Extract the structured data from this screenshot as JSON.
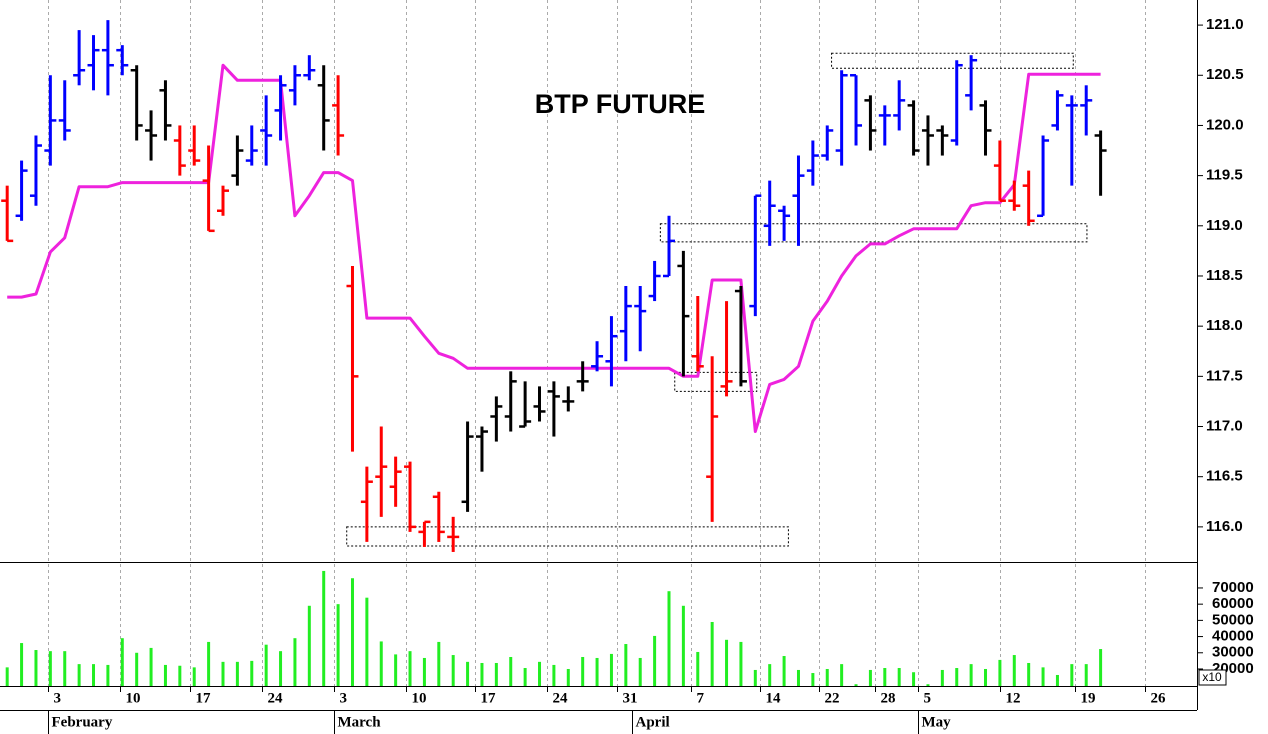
{
  "chart_data": [
    {
      "type": "ohlc",
      "title": "BTP FUTURE",
      "xlim": [
        -0.5,
        82.7
      ],
      "ylim": [
        115.65,
        121.25
      ],
      "yticks": [
        {
          "value": 116,
          "label": "116.0"
        },
        {
          "value": 116.5,
          "label": "116.5"
        },
        {
          "value": 117,
          "label": "117.0"
        },
        {
          "value": 117.5,
          "label": "117.5"
        },
        {
          "value": 118,
          "label": "118.0"
        },
        {
          "value": 118.5,
          "label": "118.5"
        },
        {
          "value": 119,
          "label": "119.0"
        },
        {
          "value": 119.5,
          "label": "119.5"
        },
        {
          "value": 120,
          "label": "120.0"
        },
        {
          "value": 120.5,
          "label": "120.5"
        },
        {
          "value": 121,
          "label": "121.0"
        }
      ],
      "grid": true,
      "open": [
        119.25,
        119.1,
        119.3,
        119.75,
        120.05,
        120.5,
        120.6,
        120.75,
        120.75,
        120.55,
        119.95,
        120.35,
        119.85,
        119.75,
        119.45,
        119.15,
        119.5,
        119.65,
        119.95,
        120.15,
        120.35,
        120.5,
        120.4,
        120.2,
        118.4,
        116.25,
        116.5,
        116.4,
        116.6,
        115.95,
        116.3,
        115.9,
        116.25,
        116.9,
        117.1,
        117.1,
        117.0,
        117.2,
        117.35,
        117.25,
        117.45,
        117.6,
        117.65,
        117.95,
        118.2,
        118.3,
        118.5,
        118.6,
        117.7,
        116.5,
        117.4,
        118.35,
        118.2,
        119.0,
        119.15,
        119.3,
        119.55,
        119.7,
        119.75,
        120.5,
        120.25,
        120.1,
        120.1,
        120.2,
        119.95,
        119.95,
        119.85,
        120.3,
        120.2,
        119.6,
        119.25,
        119.4,
        119.1,
        120.0,
        120.2,
        120.2,
        119.9
      ],
      "high": [
        119.4,
        119.65,
        119.9,
        120.5,
        120.45,
        120.95,
        120.9,
        121.05,
        120.8,
        120.6,
        120.15,
        120.45,
        120.0,
        120.0,
        119.8,
        119.4,
        119.9,
        120.0,
        120.3,
        120.5,
        120.6,
        120.7,
        120.6,
        120.5,
        118.6,
        116.6,
        117.0,
        116.7,
        116.65,
        116.05,
        116.35,
        116.1,
        117.05,
        117.0,
        117.3,
        117.55,
        117.45,
        117.4,
        117.45,
        117.4,
        117.65,
        117.85,
        118.1,
        118.4,
        118.4,
        118.65,
        119.1,
        118.75,
        118.3,
        117.7,
        118.25,
        118.4,
        119.3,
        119.45,
        119.2,
        119.7,
        119.85,
        120.0,
        120.55,
        120.5,
        120.3,
        120.2,
        120.45,
        120.25,
        120.1,
        120.0,
        120.65,
        120.7,
        120.25,
        119.85,
        119.45,
        119.55,
        119.9,
        120.35,
        120.3,
        120.4,
        119.95
      ],
      "low": [
        118.85,
        119.05,
        119.2,
        119.6,
        119.85,
        120.4,
        120.35,
        120.3,
        120.5,
        119.85,
        119.65,
        119.85,
        119.5,
        119.6,
        118.95,
        119.1,
        119.4,
        119.6,
        119.6,
        119.85,
        120.2,
        120.45,
        119.75,
        119.7,
        116.75,
        115.85,
        116.1,
        116.2,
        115.95,
        115.8,
        115.85,
        115.75,
        116.15,
        116.55,
        116.85,
        116.95,
        117.0,
        117.05,
        116.9,
        117.15,
        117.35,
        117.55,
        117.4,
        117.65,
        117.75,
        118.25,
        118.5,
        117.5,
        117.55,
        116.05,
        117.3,
        117.4,
        118.1,
        118.8,
        118.85,
        118.8,
        119.4,
        119.65,
        119.6,
        119.8,
        119.75,
        119.8,
        119.95,
        119.7,
        119.6,
        119.7,
        119.8,
        120.15,
        119.7,
        119.25,
        119.15,
        119.0,
        119.1,
        119.95,
        119.4,
        119.9,
        119.3
      ],
      "close": [
        118.85,
        119.55,
        119.8,
        120.05,
        119.95,
        120.55,
        120.75,
        120.6,
        120.6,
        120.0,
        119.9,
        120.0,
        119.6,
        119.65,
        118.95,
        119.35,
        119.75,
        119.75,
        119.9,
        120.4,
        120.5,
        120.55,
        120.05,
        119.9,
        117.5,
        116.45,
        116.6,
        116.55,
        116.0,
        116.05,
        115.95,
        115.9,
        116.9,
        116.95,
        117.2,
        117.45,
        117.05,
        117.15,
        117.3,
        117.25,
        117.45,
        117.7,
        117.9,
        118.2,
        118.15,
        118.5,
        118.85,
        118.1,
        117.6,
        117.1,
        117.45,
        117.45,
        119.3,
        119.2,
        119.1,
        119.5,
        119.7,
        119.95,
        120.5,
        120.0,
        119.95,
        120.1,
        120.25,
        119.75,
        119.9,
        119.9,
        120.6,
        120.65,
        119.95,
        119.25,
        119.2,
        119.05,
        119.85,
        120.3,
        120.2,
        120.25,
        119.75
      ],
      "colors": [
        "#ff0000",
        "#0000ff",
        "#0000ff",
        "#0000ff",
        "#0000ff",
        "#0000ff",
        "#0000ff",
        "#0000ff",
        "#0000ff",
        "#000000",
        "#000000",
        "#000000",
        "#ff0000",
        "#ff0000",
        "#ff0000",
        "#ff0000",
        "#000000",
        "#0000ff",
        "#0000ff",
        "#0000ff",
        "#0000ff",
        "#0000ff",
        "#000000",
        "#ff0000",
        "#ff0000",
        "#ff0000",
        "#ff0000",
        "#ff0000",
        "#ff0000",
        "#ff0000",
        "#ff0000",
        "#ff0000",
        "#000000",
        "#000000",
        "#000000",
        "#000000",
        "#000000",
        "#000000",
        "#000000",
        "#000000",
        "#000000",
        "#0000ff",
        "#0000ff",
        "#0000ff",
        "#0000ff",
        "#0000ff",
        "#0000ff",
        "#000000",
        "#ff0000",
        "#ff0000",
        "#ff0000",
        "#000000",
        "#0000ff",
        "#0000ff",
        "#0000ff",
        "#0000ff",
        "#0000ff",
        "#0000ff",
        "#0000ff",
        "#0000ff",
        "#000000",
        "#0000ff",
        "#0000ff",
        "#000000",
        "#000000",
        "#000000",
        "#0000ff",
        "#0000ff",
        "#000000",
        "#ff0000",
        "#ff0000",
        "#ff0000",
        "#0000ff",
        "#0000ff",
        "#0000ff",
        "#0000ff",
        "#000000"
      ],
      "stop_line": {
        "color": "#ee22dd",
        "values": [
          118.29,
          118.29,
          118.32,
          118.74,
          118.88,
          119.39,
          119.39,
          119.39,
          119.43,
          119.43,
          119.43,
          119.43,
          119.43,
          119.43,
          119.43,
          120.6,
          120.45,
          120.45,
          120.45,
          120.45,
          119.1,
          119.3,
          119.53,
          119.53,
          119.45,
          118.08,
          118.08,
          118.08,
          118.08,
          117.9,
          117.73,
          117.68,
          117.58,
          117.58,
          117.58,
          117.58,
          117.58,
          117.58,
          117.58,
          117.58,
          117.58,
          117.58,
          117.58,
          117.58,
          117.58,
          117.58,
          117.58,
          117.5,
          117.5,
          118.46,
          118.46,
          118.46,
          116.95,
          117.42,
          117.47,
          117.6,
          118.05,
          118.25,
          118.5,
          118.7,
          118.82,
          118.82,
          118.9,
          118.97,
          118.97,
          118.97,
          118.97,
          119.2,
          119.23,
          119.23,
          119.41,
          120.51,
          120.51,
          120.51,
          120.51,
          120.51,
          120.51
        ]
      },
      "boxes": [
        {
          "x": [
            57.3,
            74.1
          ],
          "y": [
            120.57,
            120.72
          ]
        },
        {
          "x": [
            45.4,
            75.05
          ],
          "y": [
            118.84,
            119.02
          ]
        },
        {
          "x": [
            46.4,
            52.1
          ],
          "y": [
            117.35,
            117.54
          ]
        },
        {
          "x": [
            23.6,
            54.3
          ],
          "y": [
            115.81,
            116.0
          ]
        }
      ]
    },
    {
      "type": "bar",
      "color": "#22ee22",
      "scale_label": "x10",
      "xlim": [
        -0.5,
        82.7
      ],
      "ylim": [
        9500,
        85400
      ],
      "yticks": [
        20000,
        30000,
        40000,
        50000,
        60000,
        70000
      ],
      "values": [
        21000,
        36000,
        31700,
        31000,
        31000,
        23000,
        23000,
        22500,
        39000,
        30000,
        33000,
        22500,
        22000,
        21000,
        36700,
        24400,
        24400,
        25000,
        35000,
        31000,
        39000,
        59000,
        80500,
        60000,
        76000,
        64000,
        37000,
        29000,
        31000,
        26800,
        36700,
        28600,
        24400,
        23700,
        23700,
        27400,
        20600,
        24400,
        22500,
        20000,
        27400,
        26800,
        29300,
        35400,
        26800,
        40400,
        68000,
        59000,
        30500,
        49000,
        38000,
        36700,
        19400,
        23000,
        28000,
        19400,
        17500,
        20000,
        23000,
        10600,
        19400,
        20600,
        20600,
        18000,
        10600,
        19400,
        20600,
        23000,
        20000,
        25600,
        28600,
        23700,
        21000,
        16300,
        23000,
        23000,
        32300
      ],
      "xticks": [
        {
          "value": 2.85,
          "label": "3"
        },
        {
          "value": 7.85,
          "label": "10"
        },
        {
          "value": 12.7,
          "label": "17"
        },
        {
          "value": 17.7,
          "label": "24"
        },
        {
          "value": 22.7,
          "label": "3"
        },
        {
          "value": 27.7,
          "label": "10"
        },
        {
          "value": 32.5,
          "label": "17"
        },
        {
          "value": 37.5,
          "label": "24"
        },
        {
          "value": 42.4,
          "label": "31"
        },
        {
          "value": 47.5,
          "label": "7"
        },
        {
          "value": 52.3,
          "label": "14"
        },
        {
          "value": 56.4,
          "label": "22"
        },
        {
          "value": 60.3,
          "label": "28"
        },
        {
          "value": 63.3,
          "label": "5"
        },
        {
          "value": 69.0,
          "label": "12"
        },
        {
          "value": 74.2,
          "label": "19"
        },
        {
          "value": 79.1,
          "label": "26"
        }
      ],
      "month_ticks": [
        {
          "value": 2.85,
          "label": "February"
        },
        {
          "value": 22.7,
          "label": "March"
        },
        {
          "value": 43.4,
          "label": "April"
        },
        {
          "value": 63.3,
          "label": "May"
        }
      ]
    }
  ]
}
